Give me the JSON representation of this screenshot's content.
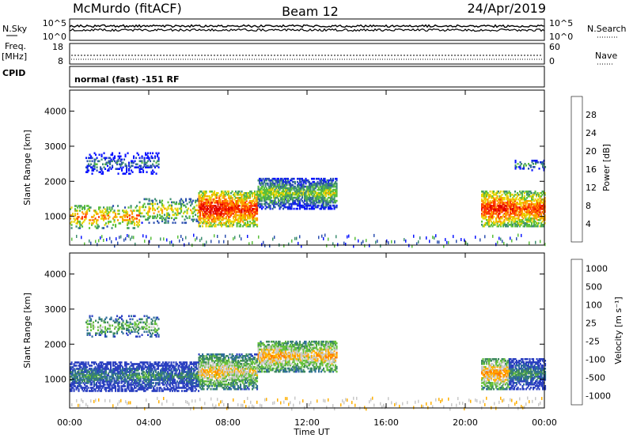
{
  "header": {
    "station": "McMurdo (fitACF)",
    "beam": "Beam 12",
    "date": "24/Apr/2019"
  },
  "panels": {
    "nsky": {
      "label": "N.Sky",
      "ticks": [
        "10^5",
        "10^0"
      ],
      "right_label": "N.Search",
      "right_ticks": [
        "10^5",
        "10^0"
      ]
    },
    "freq": {
      "label1": "Freq.",
      "label2": "[MHz]",
      "ticks": [
        "18",
        "8"
      ],
      "right_label": "Nave",
      "right_ticks": [
        "60",
        "0"
      ]
    },
    "cpid": {
      "label": "CPID",
      "mode": "normal (fast) -151 RF"
    }
  },
  "chart_data": [
    {
      "type": "heatmap",
      "parameter": "Power",
      "ylabel": "Slant Range [km]",
      "xlabel": "Time UT",
      "x_ticks": [
        "00:00",
        "04:00",
        "08:00",
        "12:00",
        "16:00",
        "20:00",
        "00:00"
      ],
      "x_range_hours": [
        0,
        24
      ],
      "y_ticks": [
        1000,
        2000,
        3000,
        4000
      ],
      "y_range_km": [
        180,
        4600
      ],
      "colorbar": {
        "label": "Power [dB]",
        "ticks": [
          "4",
          "8",
          "12",
          "16",
          "20",
          "24",
          "28"
        ],
        "range": [
          0,
          32
        ]
      },
      "colors": [
        "#0a14ff",
        "#2b4fb0",
        "#3f8f72",
        "#5abf3a",
        "#e8d400",
        "#ff9a00",
        "#ff3b00",
        "#e00000"
      ],
      "echo_regions": [
        {
          "t_start": 0.0,
          "t_end": 3.5,
          "r_min": 650,
          "r_max": 1300,
          "level": 0.75
        },
        {
          "t_start": 3.5,
          "t_end": 6.5,
          "r_min": 800,
          "r_max": 1500,
          "level": 0.62
        },
        {
          "t_start": 6.5,
          "t_end": 9.5,
          "r_min": 700,
          "r_max": 1700,
          "level": 0.9
        },
        {
          "t_start": 9.5,
          "t_end": 13.5,
          "r_min": 1200,
          "r_max": 2100,
          "level": 0.5
        },
        {
          "t_start": 20.8,
          "t_end": 24.0,
          "r_min": 700,
          "r_max": 1700,
          "level": 0.85
        },
        {
          "t_start": 0.8,
          "t_end": 4.5,
          "r_min": 2200,
          "r_max": 2800,
          "level": 0.3
        },
        {
          "t_start": 22.5,
          "t_end": 24.0,
          "r_min": 2300,
          "r_max": 2600,
          "level": 0.35
        }
      ]
    },
    {
      "type": "heatmap",
      "parameter": "Velocity",
      "ylabel": "Slant Range [km]",
      "xlabel": "Time UT",
      "x_ticks": [
        "00:00",
        "04:00",
        "08:00",
        "12:00",
        "16:00",
        "20:00",
        "00:00"
      ],
      "x_range_hours": [
        0,
        24
      ],
      "y_ticks": [
        1000,
        2000,
        3000,
        4000
      ],
      "y_range_km": [
        180,
        4600
      ],
      "colorbar": {
        "label": "Velocity [m s⁻¹]",
        "ticks": [
          "1000",
          "500",
          "100",
          "25",
          "-25",
          "-100",
          "-500",
          "-1000"
        ]
      },
      "colors": [
        "#2a3fc0",
        "#2f6e9a",
        "#3e8a5e",
        "#66c23a",
        "#c8c8c8",
        "#ffb000",
        "#ff7a00",
        "#ff1a00"
      ],
      "echo_regions": [
        {
          "t_start": 0.0,
          "t_end": 6.5,
          "r_min": 650,
          "r_max": 1500,
          "level": 0.3
        },
        {
          "t_start": 6.5,
          "t_end": 9.5,
          "r_min": 700,
          "r_max": 1700,
          "level": 0.65
        },
        {
          "t_start": 9.5,
          "t_end": 13.5,
          "r_min": 1200,
          "r_max": 2100,
          "level": 0.7
        },
        {
          "t_start": 20.8,
          "t_end": 22.2,
          "r_min": 700,
          "r_max": 1600,
          "level": 0.72
        },
        {
          "t_start": 22.2,
          "t_end": 24.0,
          "r_min": 700,
          "r_max": 1600,
          "level": 0.3
        },
        {
          "t_start": 0.8,
          "t_end": 4.5,
          "r_min": 2200,
          "r_max": 2800,
          "level": 0.5
        }
      ]
    }
  ]
}
